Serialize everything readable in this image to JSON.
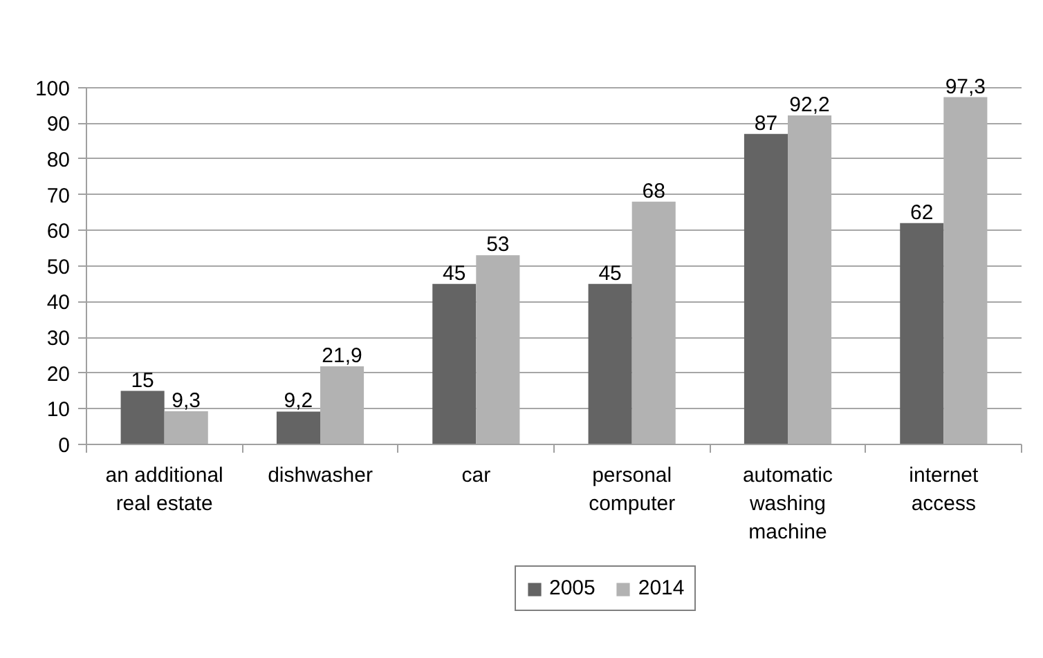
{
  "chart_data": {
    "type": "bar",
    "categories": [
      "an additional real estate",
      "dishwasher",
      "car",
      "personal computer",
      "automatic washing machine",
      "internet access"
    ],
    "series": [
      {
        "name": "2005",
        "color": "#646464",
        "values": [
          15,
          9.2,
          45,
          45,
          87,
          62
        ],
        "value_labels": [
          "15",
          "9,2",
          "45",
          "45",
          "87",
          "62"
        ]
      },
      {
        "name": "2014",
        "color": "#b2b2b2",
        "values": [
          9.3,
          21.9,
          53,
          68,
          92.2,
          97.3
        ],
        "value_labels": [
          "9,3",
          "21,9",
          "53",
          "68",
          "92,2",
          "97,3"
        ]
      }
    ],
    "ylim": [
      0,
      100
    ],
    "yticks": [
      0,
      10,
      20,
      30,
      40,
      50,
      60,
      70,
      80,
      90,
      100
    ],
    "grid": "y",
    "legend": "bottom"
  }
}
